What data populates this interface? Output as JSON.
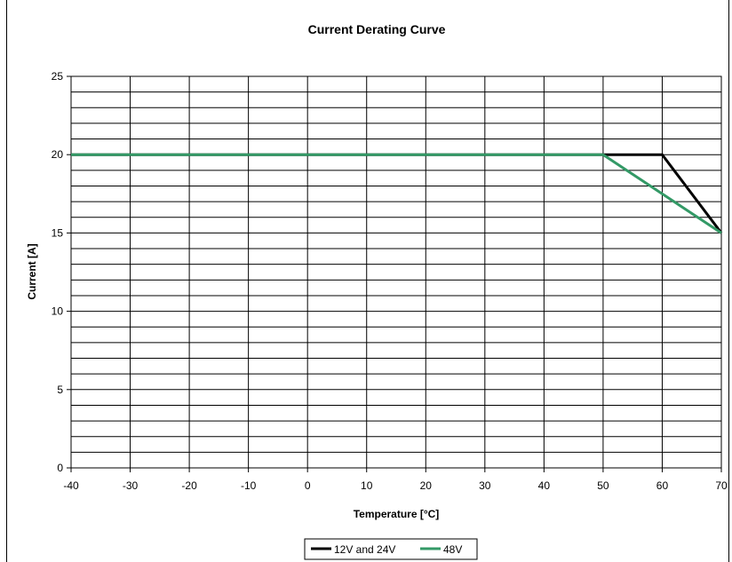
{
  "chart_data": {
    "type": "line",
    "title": "Current Derating Curve",
    "xlabel": "Temperature [°C]",
    "ylabel": "Current [A]",
    "xlim": [
      -40,
      70
    ],
    "ylim": [
      0,
      25
    ],
    "x_ticks": [
      -40,
      -30,
      -20,
      -10,
      0,
      10,
      20,
      30,
      40,
      50,
      60,
      70
    ],
    "y_ticks": [
      0,
      5,
      10,
      15,
      20,
      25
    ],
    "minor_y_step": 1,
    "grid": true,
    "legend_position": "bottom",
    "series": [
      {
        "name": "12V and 24V",
        "color": "#000000",
        "x": [
          -40,
          50,
          60,
          70
        ],
        "y": [
          20,
          20,
          20,
          15
        ]
      },
      {
        "name": "48V",
        "color": "#339966",
        "x": [
          -40,
          50,
          70
        ],
        "y": [
          20,
          20,
          15
        ]
      }
    ]
  }
}
